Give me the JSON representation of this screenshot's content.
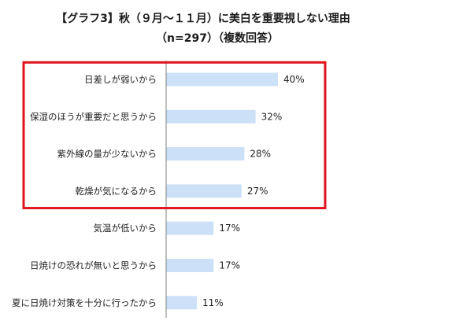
{
  "title_lines": [
    "【グラフ3】秋（９月～１１月）に美白を重要視しない理由",
    "（n=297）（複数回答）"
  ],
  "colors": {
    "bar": "#cce0f7",
    "axis": "#7f7f7f",
    "highlight": "#e0151e"
  },
  "highlight": {
    "first_index": 0,
    "last_index": 3
  },
  "chart_data": {
    "type": "bar",
    "orientation": "horizontal",
    "title": "【グラフ3】秋（９月～１１月）に美白を重要視しない理由（n=297）（複数回答）",
    "categories": [
      "日差しが弱いから",
      "保湿のほうが重要だと思うから",
      "紫外線の量が少ないから",
      "乾燥が気になるから",
      "気温が低いから",
      "日焼けの恐れが無いと思うから",
      "夏に日焼け対策を十分に行ったから"
    ],
    "values": [
      40,
      32,
      28,
      27,
      17,
      17,
      11
    ],
    "value_labels": [
      "40%",
      "32%",
      "28%",
      "27%",
      "17%",
      "17%",
      "11%"
    ],
    "unit": "%",
    "xlabel": "",
    "ylabel": "",
    "xlim": [
      0,
      100
    ],
    "grid": false,
    "legend": "none"
  }
}
